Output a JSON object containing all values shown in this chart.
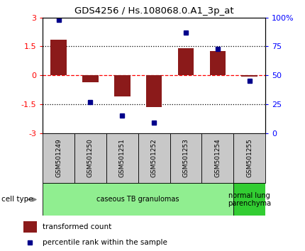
{
  "title": "GDS4256 / Hs.108068.0.A1_3p_at",
  "samples": [
    "GSM501249",
    "GSM501250",
    "GSM501251",
    "GSM501252",
    "GSM501253",
    "GSM501254",
    "GSM501255"
  ],
  "transformed_count": [
    1.85,
    -0.35,
    -1.1,
    -1.65,
    1.4,
    1.25,
    -0.05
  ],
  "percentile_rank": [
    98,
    27,
    15,
    9,
    87,
    73,
    45
  ],
  "bar_color": "#8B1A1A",
  "dot_color": "#00008B",
  "ylim_left": [
    -3,
    3
  ],
  "ylim_right": [
    0,
    100
  ],
  "yticks_left": [
    -3,
    -1.5,
    0,
    1.5,
    3
  ],
  "ytick_labels_left": [
    "-3",
    "-1.5",
    "0",
    "1.5",
    "3"
  ],
  "yticks_right": [
    0,
    25,
    50,
    75,
    100
  ],
  "ytick_labels_right": [
    "0",
    "25",
    "50",
    "75",
    "100%"
  ],
  "hlines": [
    1.5,
    0,
    -1.5
  ],
  "hline_styles": [
    "dotted",
    "dashed",
    "dotted"
  ],
  "hline_colors": [
    "black",
    "red",
    "black"
  ],
  "cell_types": [
    {
      "label": "caseous TB granulomas",
      "samples_range": [
        0,
        5
      ],
      "color": "#90EE90"
    },
    {
      "label": "normal lung\nparenchyma",
      "samples_range": [
        6,
        6
      ],
      "color": "#32CD32"
    }
  ],
  "legend_items": [
    {
      "color": "#8B1A1A",
      "label": "transformed count"
    },
    {
      "color": "#00008B",
      "label": "percentile rank within the sample"
    }
  ],
  "bar_width": 0.5,
  "background_color": "#ffffff",
  "plot_bg_color": "#ffffff",
  "spine_color": "#000000",
  "gray_box_color": "#C8C8C8"
}
